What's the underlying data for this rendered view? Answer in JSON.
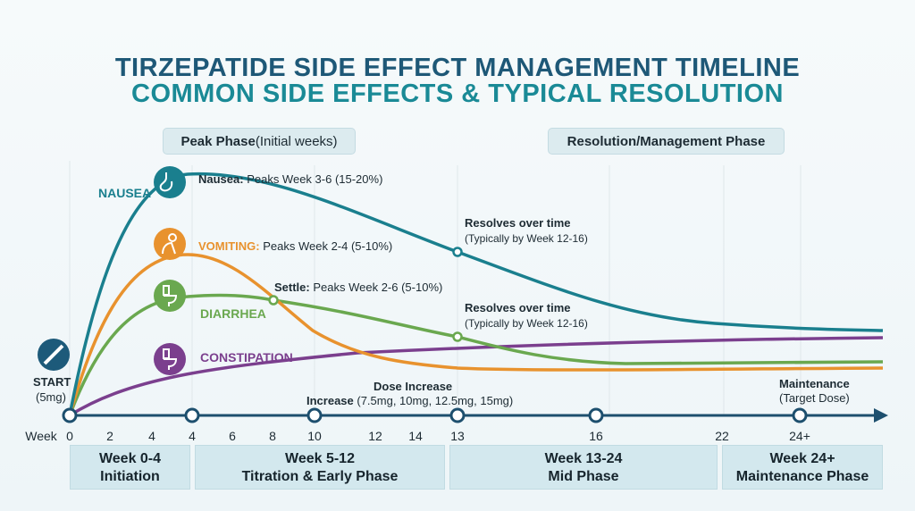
{
  "title": {
    "line1": "TIRZEPATIDE SIDE EFFECT MANAGEMENT TIMELINE",
    "line2": "COMMON SIDE EFFECTS & TYPICAL RESOLUTION"
  },
  "phases": {
    "peak_bold": "Peak Phase",
    "peak_rest": " (Initial weeks)",
    "resolution": "Resolution/Management Phase"
  },
  "colors": {
    "nausea": "#1a7f8e",
    "vomiting": "#e8922e",
    "diarrhea": "#6aa84f",
    "constipation": "#7b3f8e",
    "axis": "#1d4f6e"
  },
  "effects": {
    "nausea": {
      "name": "NAUSEA",
      "label_bold": "Nausea:",
      "label": " Peaks Week 3-6 (15-20%)",
      "icon": "stomach-icon"
    },
    "vomiting": {
      "name": "VOMITING:",
      "label": " Peaks Week 2-4 (5-10%)",
      "icon": "vomiting-person-icon"
    },
    "diarrhea": {
      "name": "DIARRHEA",
      "label_bold": "Settle:",
      "label": " Peaks Week 2-6 (5-10%)",
      "icon": "toilet-icon"
    },
    "constipation": {
      "name": "CONSTIPATION",
      "icon": "toilet-icon"
    }
  },
  "notes": {
    "resolve1_title": "Resolves over time",
    "resolve1_sub": "(Typically by Week 12-16)",
    "resolve2_title": "Resolves over time",
    "resolve2_sub": "(Typically by Week 12-16)",
    "start": "START",
    "start_dose": "(5mg)",
    "dose_title": "Dose Increase",
    "dose_bold": "Increase",
    "dose_rest": " (7.5mg, 10mg, 12.5mg, 15mg)",
    "maint_title": "Maintenance",
    "maint_sub": "(Target Dose)"
  },
  "axis": {
    "prefix": "Week",
    "ticks": [
      "0",
      "2",
      "4",
      "4",
      "6",
      "8",
      "10",
      "12",
      "14",
      "13",
      "16",
      "22",
      "24+"
    ]
  },
  "stages": [
    {
      "title": "Week 0-4",
      "sub": "Initiation"
    },
    {
      "title": "Week 5-12",
      "sub": "Titration & Early Phase"
    },
    {
      "title": "Week 13-24",
      "sub": "Mid Phase"
    },
    {
      "title": "Week 24+",
      "sub": "Maintenance Phase"
    }
  ]
}
